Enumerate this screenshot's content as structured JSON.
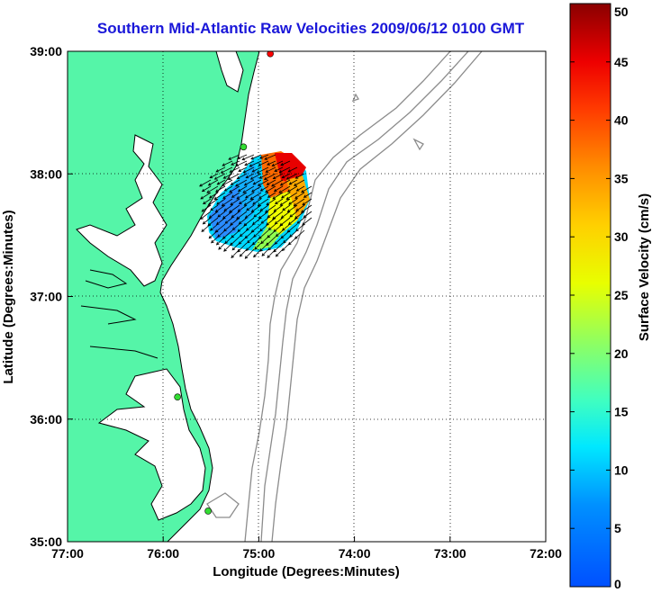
{
  "title": "Southern Mid-Atlantic Raw Velocities 2009/06/12 0100 GMT",
  "colors": {
    "land": "#55f5a8",
    "coast": "#000000",
    "isobath": "#8c8c8c",
    "grid": "#000000",
    "site_marker": "#33dd33",
    "site_marker_red": "#ff0000",
    "title": "#1a17d9"
  },
  "map": {
    "x_axis": {
      "label": "Longitude (Degrees:Minutes)",
      "range": [
        -77,
        -72
      ],
      "ticks": [
        {
          "value": -77,
          "label": "77:00"
        },
        {
          "value": -76,
          "label": "76:00"
        },
        {
          "value": -75,
          "label": "75:00"
        },
        {
          "value": -74,
          "label": "74:00"
        },
        {
          "value": -73,
          "label": "73:00"
        },
        {
          "value": -72,
          "label": "72:00"
        }
      ]
    },
    "y_axis": {
      "label": "Latitude (Degrees:Minutes)",
      "range": [
        35,
        39
      ],
      "ticks": [
        {
          "value": 39,
          "label": "39:00"
        },
        {
          "value": 38,
          "label": "38:00"
        },
        {
          "value": 37,
          "label": "37:00"
        },
        {
          "value": 36,
          "label": "36:00"
        },
        {
          "value": 35,
          "label": "35:00"
        }
      ]
    },
    "grid": "dotted",
    "sites": [
      {
        "lon": -75.16,
        "lat": 38.22,
        "color": "green"
      },
      {
        "lon": -75.85,
        "lat": 36.18,
        "color": "green"
      },
      {
        "lon": -75.53,
        "lat": 35.25,
        "color": "green"
      },
      {
        "lon": -74.88,
        "lat": 38.98,
        "color": "red"
      }
    ]
  },
  "colorbar": {
    "label": "Surface Velocity (cm/s)",
    "min": 0,
    "max": 50,
    "ticks": [
      "0",
      "5",
      "10",
      "15",
      "20",
      "25",
      "30",
      "35",
      "40",
      "45",
      "50"
    ]
  }
}
